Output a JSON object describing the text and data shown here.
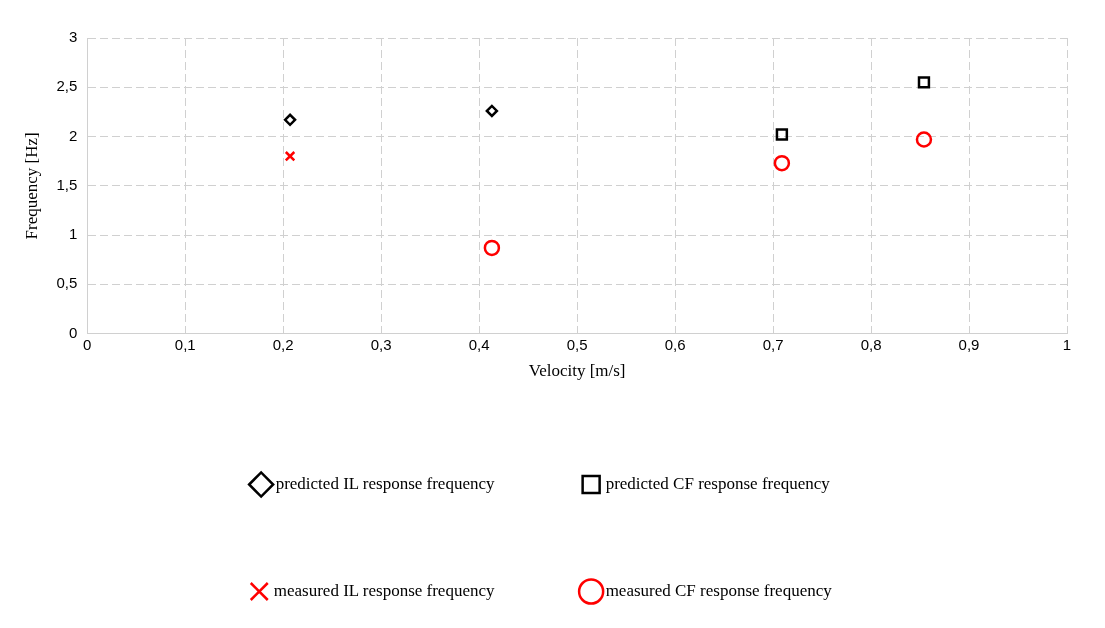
{
  "chart_data": {
    "type": "scatter",
    "xlabel": "Velocity [m/s]",
    "ylabel": "Frequency [Hz]",
    "xlim": [
      0,
      1
    ],
    "xticks": [
      0,
      {
        "value": 0.1,
        "label": "0,1"
      },
      {
        "value": 0.2,
        "label": "0,2"
      },
      {
        "value": 0.3,
        "label": "0,3"
      },
      {
        "value": 0.4,
        "label": "0,4"
      },
      {
        "value": 0.5,
        "label": "0,5"
      },
      {
        "value": 0.6,
        "label": "0,6"
      },
      {
        "value": 0.7,
        "label": "0,7"
      },
      {
        "value": 0.8,
        "label": "0,8"
      },
      {
        "value": 0.9,
        "label": "0,9"
      },
      1
    ],
    "ylim": [
      0,
      3
    ],
    "yticks": [
      0,
      {
        "value": 0.5,
        "label": "0,5"
      },
      1,
      {
        "value": 1.5,
        "label": "1,5"
      },
      2,
      {
        "value": 2.5,
        "label": "2,5"
      },
      3
    ],
    "grid": true,
    "legend": "bottom",
    "series": [
      {
        "name": "predicted IL response frequency",
        "color": "#000000",
        "marker": "diamond",
        "x": [
          0.207,
          0.413
        ],
        "values": [
          2.17,
          2.26
        ]
      },
      {
        "name": "predicted CF response frequency",
        "color": "#000000",
        "marker": "square",
        "x": [
          0.709,
          0.854
        ],
        "values": [
          2.02,
          2.55
        ]
      },
      {
        "name": "measured IL response frequency",
        "color": "#ff0000",
        "marker": "cross",
        "x": [
          0.207
        ],
        "values": [
          1.8
        ]
      },
      {
        "name": "measured CF response frequency",
        "color": "#ff0000",
        "marker": "circle",
        "x": [
          0.413,
          0.709,
          0.854
        ],
        "values": [
          0.87,
          1.73,
          1.97
        ]
      }
    ]
  }
}
